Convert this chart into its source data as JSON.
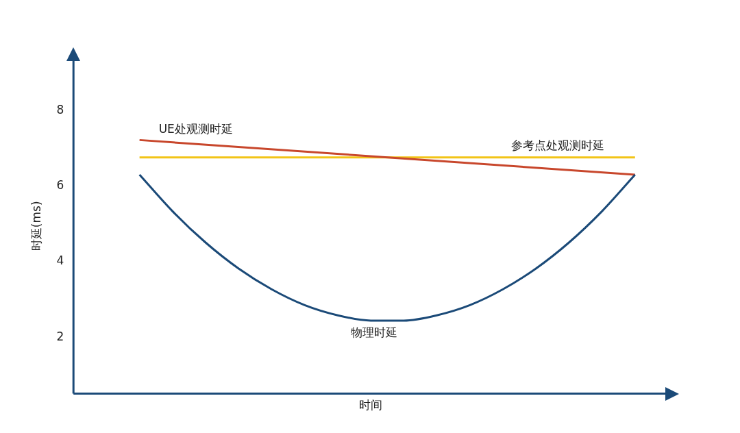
{
  "chart_data": {
    "type": "line",
    "xlabel": "时间",
    "ylabel": "时延(ms)",
    "categories": [
      null,
      null,
      null,
      null,
      null,
      null,
      null,
      null,
      null,
      null,
      null,
      null,
      null,
      null,
      null,
      null,
      null,
      null,
      null
    ],
    "series": [
      {
        "name": "物理时延",
        "color": "#1b4a78",
        "values": [
          null,
          null,
          6.31,
          5.34,
          4.51,
          3.82,
          3.27,
          2.85,
          2.58,
          2.44,
          2.44,
          2.58,
          2.85,
          3.27,
          3.82,
          4.51,
          5.34,
          6.31,
          null
        ]
      },
      {
        "name": "UE处观测时延",
        "color": "#c8472c",
        "values": [
          null,
          null,
          7.23,
          null,
          null,
          null,
          null,
          null,
          null,
          null,
          null,
          null,
          null,
          null,
          null,
          null,
          null,
          6.31,
          null
        ]
      },
      {
        "name": "参考点处观测时延",
        "color": "#f2c417",
        "values": [
          null,
          null,
          6.77,
          null,
          null,
          null,
          null,
          null,
          null,
          null,
          null,
          null,
          null,
          null,
          null,
          null,
          null,
          6.77,
          null
        ]
      }
    ],
    "ylim": [
      0.5,
      9.4
    ],
    "yticks": [
      2,
      4,
      6,
      8
    ],
    "grid": false,
    "legend": false,
    "marker": "none",
    "line_style": "solid",
    "tick_labels": "y"
  }
}
